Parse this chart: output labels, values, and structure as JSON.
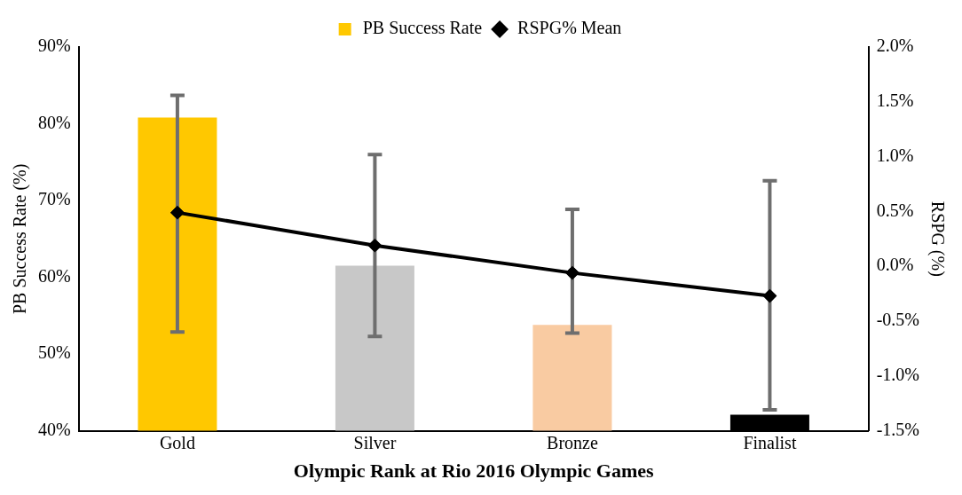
{
  "chart_data": {
    "type": "bar",
    "xlabel": "Olympic Rank at Rio 2016 Olympic Games",
    "ylabel": "PB Success Rate (%)",
    "y2label": "RSPG (%)",
    "categories": [
      "Gold",
      "Silver",
      "Bronze",
      "Finalist"
    ],
    "series": [
      {
        "name": "PB Success Rate",
        "color": "#ffc800",
        "colors": [
          "#ffc800",
          "#c8c8c8",
          "#f9cba2",
          "#000000"
        ],
        "values": [
          80.8,
          61.5,
          53.8,
          42.1
        ]
      },
      {
        "name": "RSPG% Mean",
        "type": "line",
        "axis": "y2",
        "color": "#000000",
        "marker": "diamond",
        "values": [
          0.49,
          0.19,
          -0.06,
          -0.27
        ],
        "errors": [
          [
            -0.6,
            1.56
          ],
          [
            -0.64,
            1.02
          ],
          [
            -0.61,
            0.52
          ],
          [
            -1.31,
            0.78
          ]
        ]
      }
    ],
    "ylim": [
      40,
      90
    ],
    "yticks": [
      {
        "value": 40,
        "label": "40%"
      },
      {
        "value": 50,
        "label": "50%"
      },
      {
        "value": 60,
        "label": "60%"
      },
      {
        "value": 70,
        "label": "70%"
      },
      {
        "value": 80,
        "label": "80%"
      },
      {
        "value": 90,
        "label": "90%"
      }
    ],
    "y2lim": [
      -1.5,
      2.0
    ],
    "y2ticks": [
      {
        "value": -1.5,
        "label": "-1.5%"
      },
      {
        "value": -1,
        "label": "-1.0%"
      },
      {
        "value": -0.5,
        "label": "-0.5%"
      },
      {
        "value": 0,
        "label": "0.0%"
      },
      {
        "value": 0.5,
        "label": "0.5%"
      },
      {
        "value": 1,
        "label": "1.0%"
      },
      {
        "value": 1.5,
        "label": "1.5%"
      },
      {
        "value": 2,
        "label": "2.0%"
      }
    ],
    "grid": false,
    "legend": "top"
  }
}
